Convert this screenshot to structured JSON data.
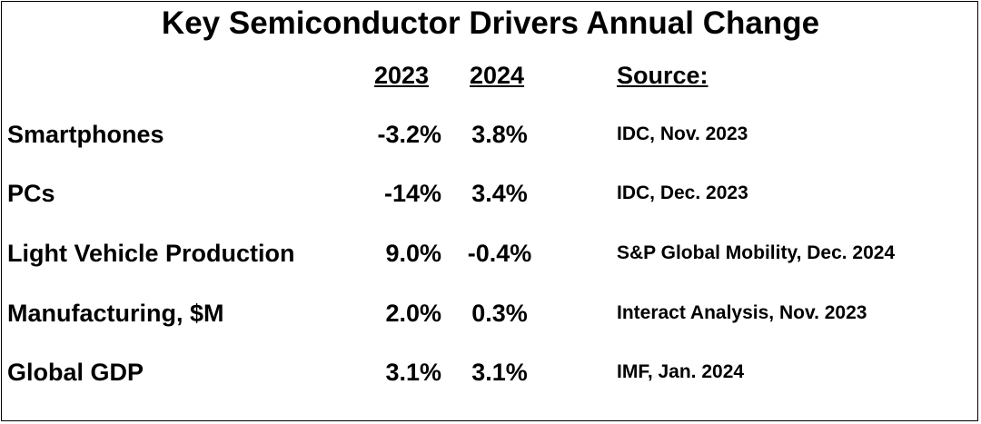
{
  "chart_data": {
    "type": "table",
    "title": "Key Semiconductor Drivers Annual Change",
    "columns": [
      "2023",
      "2024",
      "Source:"
    ],
    "rows": [
      {
        "label": "Smartphones",
        "v2023": "-3.2%",
        "v2024": "3.8%",
        "source": "IDC, Nov. 2023"
      },
      {
        "label": "PCs",
        "v2023": "-14%",
        "v2024": "3.4%",
        "source": "IDC, Dec. 2023"
      },
      {
        "label": "Light Vehicle Production",
        "v2023": "9.0%",
        "v2024": "-0.4%",
        "source": "S&P Global Mobility, Dec. 2024"
      },
      {
        "label": "Manufacturing, $M",
        "v2023": "2.0%",
        "v2024": "0.3%",
        "source": "Interact Analysis, Nov. 2023"
      },
      {
        "label": "Global GDP",
        "v2023": "3.1%",
        "v2024": "3.1%",
        "source": "IMF, Jan. 2024"
      }
    ]
  }
}
